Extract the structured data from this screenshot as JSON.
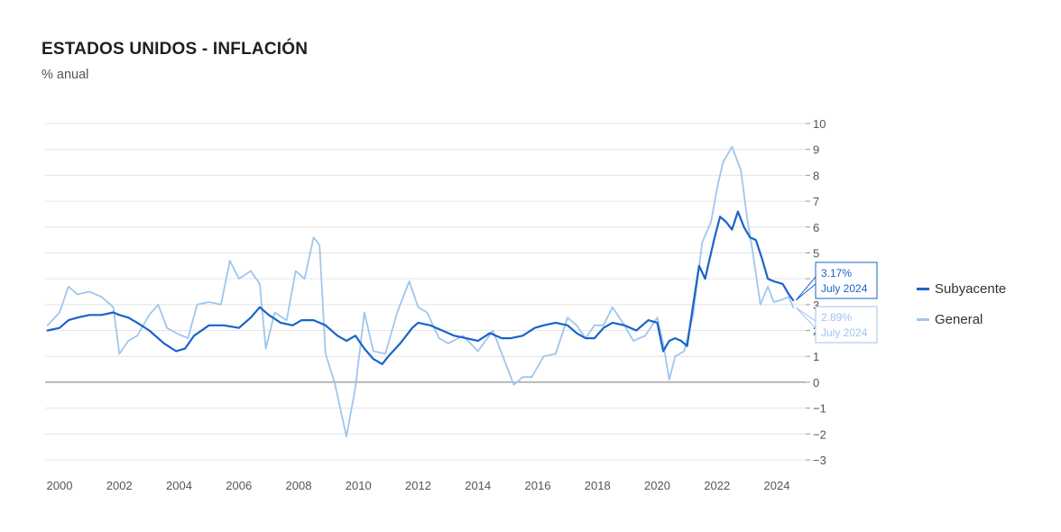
{
  "header": {
    "title": "ESTADOS UNIDOS - INFLACIÓN",
    "subtitle": "% anual"
  },
  "colors": {
    "subyacente": "#1a63c8",
    "general": "#9fc6ee",
    "grid": "#e4e4e4",
    "zero": "#777777"
  },
  "chart_data": {
    "type": "line",
    "title": "ESTADOS UNIDOS - INFLACIÓN",
    "subtitle": "% anual",
    "x_range": [
      1999.6,
      2024.9
    ],
    "ylim": [
      -3,
      10
    ],
    "y_ticks": [
      "−3",
      "−2",
      "−1",
      "0",
      "1",
      "2",
      "3",
      "4",
      "5",
      "6",
      "7",
      "8",
      "9",
      "10"
    ],
    "x_ticks": [
      "2000",
      "2002",
      "2004",
      "2006",
      "2008",
      "2010",
      "2012",
      "2014",
      "2016",
      "2018",
      "2020",
      "2022",
      "2024"
    ],
    "legend_position": "right",
    "series": [
      {
        "name": "Subyacente",
        "x": [
          1999.6,
          2000.0,
          2000.3,
          2000.6,
          2001.0,
          2001.4,
          2001.8,
          2002.0,
          2002.3,
          2002.6,
          2003.0,
          2003.5,
          2003.9,
          2004.2,
          2004.5,
          2005.0,
          2005.5,
          2006.0,
          2006.4,
          2006.7,
          2007.0,
          2007.4,
          2007.8,
          2008.1,
          2008.5,
          2008.9,
          2009.3,
          2009.6,
          2009.9,
          2010.2,
          2010.5,
          2010.8,
          2011.0,
          2011.4,
          2011.8,
          2012.0,
          2012.4,
          2012.8,
          2013.2,
          2013.6,
          2014.0,
          2014.4,
          2014.8,
          2015.1,
          2015.5,
          2015.9,
          2016.2,
          2016.6,
          2017.0,
          2017.3,
          2017.6,
          2017.9,
          2018.2,
          2018.5,
          2018.9,
          2019.3,
          2019.7,
          2020.0,
          2020.2,
          2020.4,
          2020.6,
          2020.8,
          2021.0,
          2021.2,
          2021.4,
          2021.6,
          2021.9,
          2022.1,
          2022.3,
          2022.5,
          2022.7,
          2022.9,
          2023.1,
          2023.3,
          2023.5,
          2023.7,
          2023.9,
          2024.2,
          2024.4,
          2024.55
        ],
        "y": [
          2.0,
          2.1,
          2.4,
          2.5,
          2.6,
          2.6,
          2.7,
          2.6,
          2.5,
          2.3,
          2.0,
          1.5,
          1.2,
          1.3,
          1.8,
          2.2,
          2.2,
          2.1,
          2.5,
          2.9,
          2.6,
          2.3,
          2.2,
          2.4,
          2.4,
          2.2,
          1.8,
          1.6,
          1.8,
          1.3,
          0.9,
          0.7,
          1.0,
          1.5,
          2.1,
          2.3,
          2.2,
          2.0,
          1.8,
          1.7,
          1.6,
          1.9,
          1.7,
          1.7,
          1.8,
          2.1,
          2.2,
          2.3,
          2.2,
          1.9,
          1.7,
          1.7,
          2.1,
          2.3,
          2.2,
          2.0,
          2.4,
          2.3,
          1.2,
          1.6,
          1.7,
          1.6,
          1.4,
          3.0,
          4.5,
          4.0,
          5.5,
          6.4,
          6.2,
          5.9,
          6.6,
          6.0,
          5.6,
          5.5,
          4.8,
          4.0,
          3.9,
          3.8,
          3.4,
          3.17
        ]
      },
      {
        "name": "General",
        "x": [
          1999.6,
          2000.0,
          2000.3,
          2000.6,
          2001.0,
          2001.4,
          2001.8,
          2002.0,
          2002.3,
          2002.6,
          2003.0,
          2003.3,
          2003.6,
          2003.9,
          2004.3,
          2004.6,
          2005.0,
          2005.4,
          2005.7,
          2006.0,
          2006.4,
          2006.7,
          2006.9,
          2007.2,
          2007.6,
          2007.9,
          2008.2,
          2008.5,
          2008.7,
          2008.9,
          2009.2,
          2009.6,
          2009.9,
          2010.2,
          2010.5,
          2010.9,
          2011.3,
          2011.7,
          2012.0,
          2012.3,
          2012.7,
          2013.0,
          2013.5,
          2014.0,
          2014.5,
          2014.9,
          2015.2,
          2015.5,
          2015.8,
          2016.2,
          2016.6,
          2017.0,
          2017.3,
          2017.6,
          2017.9,
          2018.2,
          2018.5,
          2018.9,
          2019.2,
          2019.6,
          2020.0,
          2020.2,
          2020.4,
          2020.6,
          2020.9,
          2021.2,
          2021.5,
          2021.8,
          2022.0,
          2022.2,
          2022.5,
          2022.8,
          2023.0,
          2023.2,
          2023.45,
          2023.7,
          2023.9,
          2024.2,
          2024.4,
          2024.55
        ],
        "y": [
          2.2,
          2.7,
          3.7,
          3.4,
          3.5,
          3.3,
          2.9,
          1.1,
          1.6,
          1.8,
          2.6,
          3.0,
          2.1,
          1.9,
          1.7,
          3.0,
          3.1,
          3.0,
          4.7,
          4.0,
          4.3,
          3.8,
          1.3,
          2.7,
          2.4,
          4.3,
          4.0,
          5.6,
          5.3,
          1.1,
          0.0,
          -2.1,
          -0.2,
          2.7,
          1.2,
          1.1,
          2.7,
          3.9,
          2.9,
          2.7,
          1.7,
          1.5,
          1.8,
          1.2,
          2.0,
          0.8,
          -0.1,
          0.2,
          0.2,
          1.0,
          1.1,
          2.5,
          2.2,
          1.7,
          2.2,
          2.2,
          2.9,
          2.2,
          1.6,
          1.8,
          2.5,
          1.5,
          0.1,
          1.0,
          1.2,
          2.6,
          5.4,
          6.2,
          7.5,
          8.5,
          9.1,
          8.2,
          6.4,
          5.0,
          3.0,
          3.7,
          3.1,
          3.2,
          3.3,
          2.89
        ]
      }
    ],
    "annotations": [
      {
        "series": "Subyacente",
        "value_label": "3.17%",
        "date_label": "July 2024"
      },
      {
        "series": "General",
        "value_label": "2.89%",
        "date_label": "July 2024"
      }
    ]
  }
}
